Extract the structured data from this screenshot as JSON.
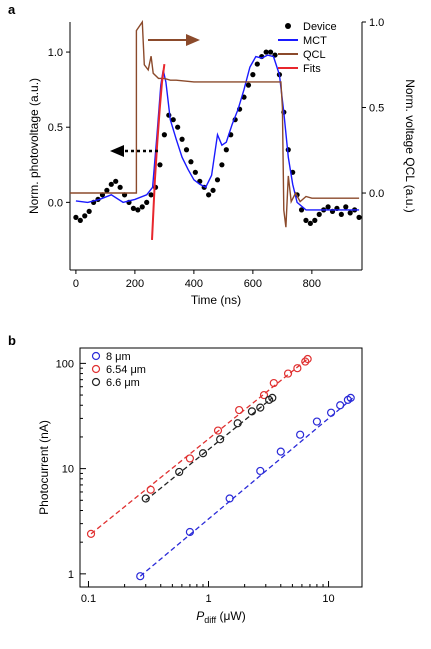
{
  "chart_data": [
    {
      "panel": "a",
      "type": "line",
      "xlabel": "Time (ns)",
      "ylabel_left": "Norm. photovoltage (a.u.)",
      "ylabel_right": "Norm. voltage QCL (a.u.)",
      "xlim": [
        -20,
        970
      ],
      "x_ticks": [
        0,
        200,
        400,
        600,
        800
      ],
      "ylim_left": [
        -0.45,
        1.2
      ],
      "y_ticks_left": [
        "0.0",
        "0.5",
        "1.0"
      ],
      "ylim_right": [
        -0.45,
        1.0
      ],
      "y_ticks_right": [
        "0.0",
        "0.5",
        "1.0"
      ],
      "legend": {
        "position": "top-right",
        "entries": [
          "Device",
          "MCT",
          "QCL",
          "Fits"
        ]
      },
      "series": [
        {
          "name": "Device",
          "style": "markers",
          "color": "#000000",
          "axis": "left",
          "points": [
            [
              0,
              -0.1
            ],
            [
              15,
              -0.12
            ],
            [
              30,
              -0.09
            ],
            [
              45,
              -0.06
            ],
            [
              60,
              0.0
            ],
            [
              75,
              0.02
            ],
            [
              90,
              0.05
            ],
            [
              105,
              0.08
            ],
            [
              120,
              0.12
            ],
            [
              135,
              0.14
            ],
            [
              150,
              0.1
            ],
            [
              165,
              0.05
            ],
            [
              180,
              0.0
            ],
            [
              195,
              -0.04
            ],
            [
              210,
              -0.05
            ],
            [
              225,
              -0.03
            ],
            [
              240,
              0.0
            ],
            [
              255,
              0.05
            ],
            [
              270,
              0.1
            ],
            [
              285,
              0.25
            ],
            [
              300,
              0.45
            ],
            [
              315,
              0.58
            ],
            [
              330,
              0.55
            ],
            [
              345,
              0.5
            ],
            [
              360,
              0.42
            ],
            [
              375,
              0.35
            ],
            [
              390,
              0.27
            ],
            [
              405,
              0.2
            ],
            [
              420,
              0.14
            ],
            [
              435,
              0.1
            ],
            [
              450,
              0.05
            ],
            [
              465,
              0.08
            ],
            [
              480,
              0.15
            ],
            [
              495,
              0.25
            ],
            [
              510,
              0.35
            ],
            [
              525,
              0.45
            ],
            [
              540,
              0.55
            ],
            [
              555,
              0.62
            ],
            [
              570,
              0.7
            ],
            [
              585,
              0.78
            ],
            [
              600,
              0.85
            ],
            [
              615,
              0.92
            ],
            [
              630,
              0.97
            ],
            [
              645,
              1.0
            ],
            [
              660,
              1.0
            ],
            [
              675,
              0.98
            ],
            [
              690,
              0.85
            ],
            [
              705,
              0.6
            ],
            [
              720,
              0.35
            ],
            [
              735,
              0.2
            ],
            [
              750,
              0.05
            ],
            [
              765,
              -0.05
            ],
            [
              780,
              -0.12
            ],
            [
              795,
              -0.14
            ],
            [
              810,
              -0.12
            ],
            [
              825,
              -0.08
            ],
            [
              840,
              -0.05
            ],
            [
              855,
              -0.03
            ],
            [
              870,
              -0.06
            ],
            [
              885,
              -0.04
            ],
            [
              900,
              -0.08
            ],
            [
              915,
              -0.03
            ],
            [
              930,
              -0.07
            ],
            [
              945,
              -0.05
            ],
            [
              960,
              -0.1
            ]
          ]
        },
        {
          "name": "MCT",
          "style": "line",
          "color": "#1a1aff",
          "axis": "left",
          "points": [
            [
              0,
              0.01
            ],
            [
              40,
              0.0
            ],
            [
              80,
              0.02
            ],
            [
              120,
              0.05
            ],
            [
              160,
              0.0
            ],
            [
              200,
              0.02
            ],
            [
              240,
              0.05
            ],
            [
              260,
              0.1
            ],
            [
              275,
              0.45
            ],
            [
              288,
              0.78
            ],
            [
              296,
              0.88
            ],
            [
              305,
              0.8
            ],
            [
              320,
              0.55
            ],
            [
              340,
              0.42
            ],
            [
              360,
              0.3
            ],
            [
              380,
              0.22
            ],
            [
              400,
              0.15
            ],
            [
              420,
              0.12
            ],
            [
              440,
              0.1
            ],
            [
              460,
              0.18
            ],
            [
              480,
              0.45
            ],
            [
              495,
              0.38
            ],
            [
              510,
              0.4
            ],
            [
              530,
              0.52
            ],
            [
              550,
              0.62
            ],
            [
              570,
              0.75
            ],
            [
              590,
              0.9
            ],
            [
              610,
              0.97
            ],
            [
              630,
              0.96
            ],
            [
              650,
              0.98
            ],
            [
              670,
              0.97
            ],
            [
              690,
              0.85
            ],
            [
              705,
              0.6
            ],
            [
              720,
              0.3
            ],
            [
              735,
              0.12
            ],
            [
              750,
              0.0
            ],
            [
              780,
              -0.05
            ],
            [
              820,
              -0.05
            ],
            [
              860,
              -0.05
            ],
            [
              900,
              -0.05
            ],
            [
              940,
              -0.05
            ],
            [
              960,
              -0.05
            ]
          ]
        },
        {
          "name": "QCL",
          "style": "line",
          "color": "#8b4a2b",
          "axis": "right",
          "points": [
            [
              -20,
              0.0
            ],
            [
              205,
              0.0
            ],
            [
              205,
              0.95
            ],
            [
              225,
              1.0
            ],
            [
              232,
              0.75
            ],
            [
              245,
              0.72
            ],
            [
              255,
              0.8
            ],
            [
              262,
              0.7
            ],
            [
              280,
              0.67
            ],
            [
              300,
              0.67
            ],
            [
              320,
              0.66
            ],
            [
              340,
              0.66
            ],
            [
              400,
              0.65
            ],
            [
              500,
              0.65
            ],
            [
              600,
              0.65
            ],
            [
              695,
              0.65
            ],
            [
              700,
              0.5
            ],
            [
              705,
              -0.1
            ],
            [
              712,
              -0.2
            ],
            [
              720,
              0.1
            ],
            [
              730,
              -0.05
            ],
            [
              745,
              0.0
            ],
            [
              760,
              -0.05
            ],
            [
              780,
              -0.02
            ],
            [
              800,
              -0.03
            ],
            [
              840,
              -0.03
            ],
            [
              900,
              -0.03
            ],
            [
              960,
              -0.03
            ]
          ]
        },
        {
          "name": "Fits",
          "style": "line",
          "color": "#e8262c",
          "axis": "left",
          "points": [
            [
              258,
              -0.25
            ],
            [
              268,
              0.15
            ],
            [
              276,
              0.4
            ],
            [
              284,
              0.62
            ],
            [
              292,
              0.8
            ],
            [
              300,
              0.92
            ]
          ]
        }
      ]
    },
    {
      "panel": "b",
      "type": "scatter",
      "xlabel": "P_diff (μW)",
      "ylabel": "Photocurrent (nA)",
      "x_scale": "log",
      "y_scale": "log",
      "xlim": [
        0.085,
        19
      ],
      "ylim": [
        0.75,
        140
      ],
      "x_ticks": [
        "0.1",
        "1",
        "10"
      ],
      "y_ticks": [
        "1",
        "10",
        "100"
      ],
      "legend": {
        "position": "top-left",
        "entries": [
          "8 μm",
          "6.54 μm",
          "6.6 μm"
        ]
      },
      "series": [
        {
          "name": "8 μm",
          "color": "#2a2ad8",
          "style": "open-circles",
          "points": [
            [
              0.27,
              0.95
            ],
            [
              0.7,
              2.5
            ],
            [
              1.5,
              5.2
            ],
            [
              2.7,
              9.5
            ],
            [
              4.0,
              14.5
            ],
            [
              5.8,
              21
            ],
            [
              8.0,
              28
            ],
            [
              10.5,
              34
            ],
            [
              12.5,
              40
            ],
            [
              14.5,
              45
            ],
            [
              15.3,
              47
            ]
          ],
          "fit": [
            [
              0.27,
              0.95
            ],
            [
              16,
              47
            ]
          ]
        },
        {
          "name": "6.54 μm",
          "color": "#e03030",
          "style": "open-circles",
          "points": [
            [
              0.105,
              2.4
            ],
            [
              0.33,
              6.3
            ],
            [
              0.7,
              12.5
            ],
            [
              1.2,
              23
            ],
            [
              1.8,
              36
            ],
            [
              2.9,
              50
            ],
            [
              3.5,
              65
            ],
            [
              4.6,
              80
            ],
            [
              5.5,
              90
            ],
            [
              6.4,
              104
            ],
            [
              6.7,
              110
            ]
          ],
          "fit": [
            [
              0.105,
              2.4
            ],
            [
              6.8,
              112
            ]
          ]
        },
        {
          "name": "6.6 μm",
          "color": "#222222",
          "style": "open-circles",
          "points": [
            [
              0.3,
              5.2
            ],
            [
              0.57,
              9.3
            ],
            [
              0.9,
              14
            ],
            [
              1.25,
              19
            ],
            [
              1.75,
              27
            ],
            [
              2.3,
              35
            ],
            [
              2.7,
              38
            ],
            [
              3.2,
              45
            ],
            [
              3.4,
              47
            ]
          ],
          "fit": [
            [
              0.3,
              5.0
            ],
            [
              3.4,
              47
            ]
          ]
        }
      ]
    }
  ]
}
